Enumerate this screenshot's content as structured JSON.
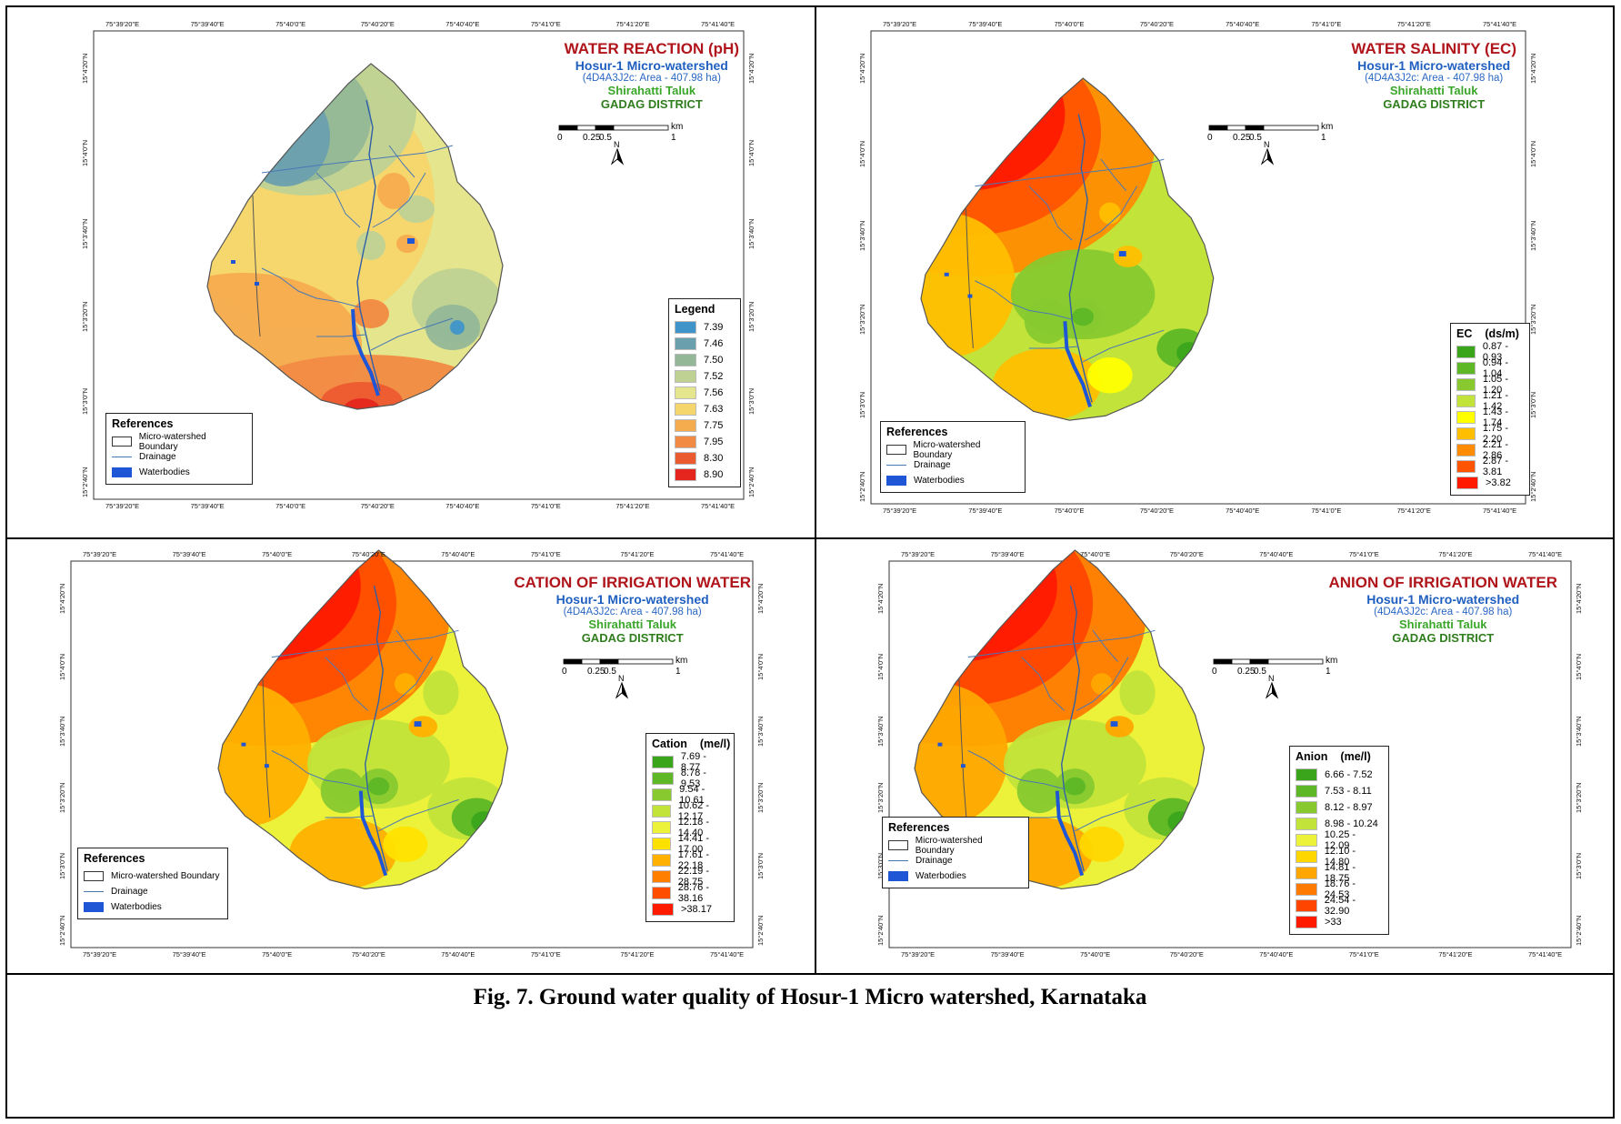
{
  "caption": "Fig. 7. Ground water quality of Hosur-1 Micro watershed, Karnataka",
  "common": {
    "watershed": "Hosur-1  Micro-watershed",
    "code": "(4D4A3J2c: Area - 407.98 ha)",
    "taluk": "Shirahatti Taluk",
    "district": "GADAG DISTRICT",
    "scale_labels": [
      "0",
      "0.25",
      "0.5",
      "1"
    ],
    "scale_unit": "km",
    "north": "N",
    "lon_ticks": [
      "75°39'20\"E",
      "75°39'40\"E",
      "75°40'0\"E",
      "75°40'20\"E",
      "75°40'40\"E",
      "75°41'0\"E",
      "75°41'20\"E",
      "75°41'40\"E"
    ],
    "lat_ticks": [
      "15°4'20\"N",
      "15°4'0\"N",
      "15°3'40\"N",
      "15°3'20\"N",
      "15°3'0\"N",
      "15°2'40\"N"
    ]
  },
  "references": {
    "title": "References",
    "items": [
      {
        "label": "Micro-watershed Boundary",
        "kind": "box"
      },
      {
        "label": "Drainage",
        "kind": "line"
      },
      {
        "label": "Waterbodies",
        "kind": "fill"
      }
    ],
    "colors": {
      "drainage": "#4a78b5",
      "waterbody": "#1e56d6"
    }
  },
  "panels": [
    {
      "id": "ph",
      "title": "WATER REACTION (pH)",
      "legend_title": "Legend",
      "legend_unit": "",
      "classes": [
        {
          "label": "7.39",
          "color": "#3f95c9"
        },
        {
          "label": "7.46",
          "color": "#6a9fae"
        },
        {
          "label": "7.50",
          "color": "#93b797"
        },
        {
          "label": "7.52",
          "color": "#bfd293"
        },
        {
          "label": "7.56",
          "color": "#e4e58c"
        },
        {
          "label": "7.63",
          "color": "#f5d66d"
        },
        {
          "label": "7.75",
          "color": "#f5ac4f"
        },
        {
          "label": "7.95",
          "color": "#f28a43"
        },
        {
          "label": "8.30",
          "color": "#ec5b30"
        },
        {
          "label": "8.90",
          "color": "#e5261f"
        }
      ]
    },
    {
      "id": "ec",
      "title": "WATER SALINITY (EC)",
      "legend_title": "EC",
      "legend_unit": "(ds/m)",
      "classes": [
        {
          "label": "0.87 - 0.93",
          "color": "#3aa51b"
        },
        {
          "label": "0.94 - 1.04",
          "color": "#5db726"
        },
        {
          "label": "1.05 - 1.20",
          "color": "#87c92f"
        },
        {
          "label": "1.21 - 1.42",
          "color": "#c2e33a"
        },
        {
          "label": "1.43 - 1.74",
          "color": "#ffff00"
        },
        {
          "label": "1.75 - 2.20",
          "color": "#ffbf00"
        },
        {
          "label": "2.21 - 2.86",
          "color": "#ff8c00"
        },
        {
          "label": "2.87 - 3.81",
          "color": "#ff5500"
        },
        {
          "label": ">3.82",
          "color": "#ff1a00"
        }
      ]
    },
    {
      "id": "cation",
      "title": "CATION OF IRRIGATION WATER",
      "legend_title": "Cation",
      "legend_unit": "(me/l)",
      "classes": [
        {
          "label": "7.69 - 8.77",
          "color": "#3aa51b"
        },
        {
          "label": "8.78 - 9.53",
          "color": "#5db726"
        },
        {
          "label": "9.54 - 10.61",
          "color": "#87c92f"
        },
        {
          "label": "10.62 - 12.17",
          "color": "#c2e33a"
        },
        {
          "label": "12.18 - 14.40",
          "color": "#ecf23a"
        },
        {
          "label": "14.41 - 17.00",
          "color": "#ffe100"
        },
        {
          "label": "17.61 - 22.18",
          "color": "#ffb000"
        },
        {
          "label": "22.19 - 28.75",
          "color": "#ff8000"
        },
        {
          "label": "28.76 - 38.16",
          "color": "#ff4d00"
        },
        {
          "label": ">38.17",
          "color": "#ff1a00"
        }
      ]
    },
    {
      "id": "anion",
      "title": "ANION OF IRRIGATION WATER",
      "legend_title": "Anion",
      "legend_unit": "(me/l)",
      "classes": [
        {
          "label": "6.66 - 7.52",
          "color": "#3aa51b"
        },
        {
          "label": "7.53 - 8.11",
          "color": "#5db726"
        },
        {
          "label": "8.12 - 8.97",
          "color": "#87c92f"
        },
        {
          "label": "8.98 - 10.24",
          "color": "#c2e33a"
        },
        {
          "label": "10.25 - 12.09",
          "color": "#ecf23a"
        },
        {
          "label": "12.10 - 14.80",
          "color": "#ffd700"
        },
        {
          "label": "14.81 - 18.75",
          "color": "#ffa600"
        },
        {
          "label": "18.76 - 24.53",
          "color": "#ff7a00"
        },
        {
          "label": "24.54 - 32.90",
          "color": "#ff4500"
        },
        {
          "label": ">33",
          "color": "#ff1a00"
        }
      ]
    }
  ]
}
